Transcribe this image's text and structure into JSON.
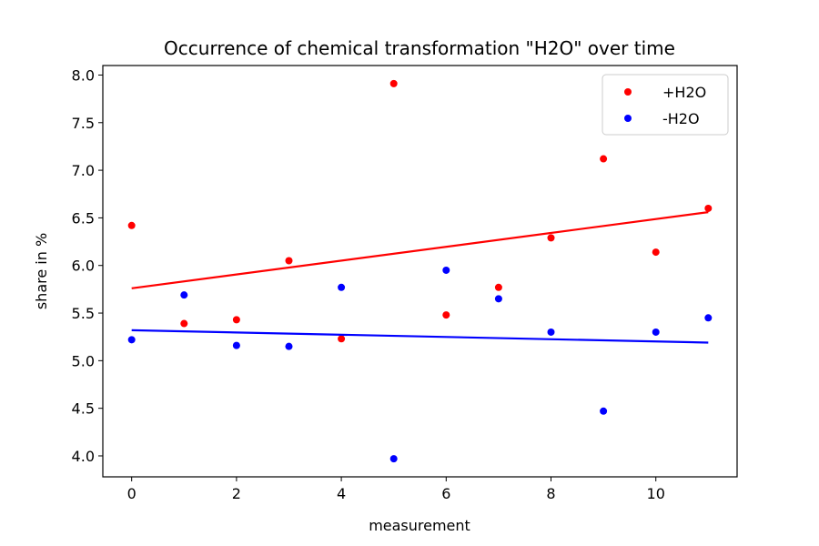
{
  "chart_data": {
    "type": "scatter",
    "title": "Occurrence of chemical transformation \"H2O\" over time",
    "xlabel": "measurement",
    "ylabel": "share in %",
    "xlim": [
      -0.55,
      11.55
    ],
    "ylim": [
      3.78,
      8.1
    ],
    "xticks": [
      0,
      2,
      4,
      6,
      8,
      10
    ],
    "xtick_labels": [
      "0",
      "2",
      "4",
      "6",
      "8",
      "10"
    ],
    "yticks": [
      4.0,
      4.5,
      5.0,
      5.5,
      6.0,
      6.5,
      7.0,
      7.5,
      8.0
    ],
    "ytick_labels": [
      "4.0",
      "4.5",
      "5.0",
      "5.5",
      "6.0",
      "6.5",
      "7.0",
      "7.5",
      "8.0"
    ],
    "grid": false,
    "legend_position": "top-right",
    "series": [
      {
        "name": "+H2O",
        "color": "#ff0000",
        "x": [
          0,
          1,
          2,
          3,
          4,
          5,
          6,
          7,
          8,
          9,
          10,
          11
        ],
        "y": [
          6.42,
          5.39,
          5.43,
          6.05,
          5.23,
          7.91,
          5.48,
          5.77,
          6.29,
          7.12,
          6.14,
          6.6
        ],
        "trend": {
          "x": [
            0,
            11
          ],
          "y": [
            5.76,
            6.56
          ]
        }
      },
      {
        "name": "-H2O",
        "color": "#0000ff",
        "x": [
          0,
          1,
          2,
          3,
          4,
          5,
          6,
          7,
          8,
          9,
          10,
          11
        ],
        "y": [
          5.22,
          5.69,
          5.16,
          5.15,
          5.77,
          3.97,
          5.95,
          5.65,
          5.3,
          4.47,
          5.3,
          5.45
        ],
        "trend": {
          "x": [
            0,
            11
          ],
          "y": [
            5.32,
            5.19
          ]
        }
      }
    ]
  }
}
